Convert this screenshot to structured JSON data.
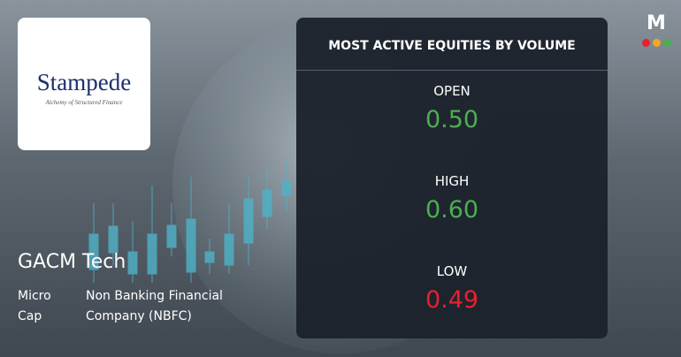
{
  "logo": {
    "name": "Stampede",
    "tagline": "Alchemy of Structured Finance"
  },
  "company": {
    "name": "GACM Tech",
    "cap": "Micro Cap",
    "sector": "Non Banking Financial Company (NBFC)"
  },
  "brand": "M",
  "panel": {
    "title": "MOST ACTIVE EQUITIES BY VOLUME",
    "stats": [
      {
        "label": "OPEN",
        "value": "0.50",
        "color": "#4caf50"
      },
      {
        "label": "HIGH",
        "value": "0.60",
        "color": "#4caf50"
      },
      {
        "label": "LOW",
        "value": "0.49",
        "color": "#e8202e"
      }
    ]
  }
}
